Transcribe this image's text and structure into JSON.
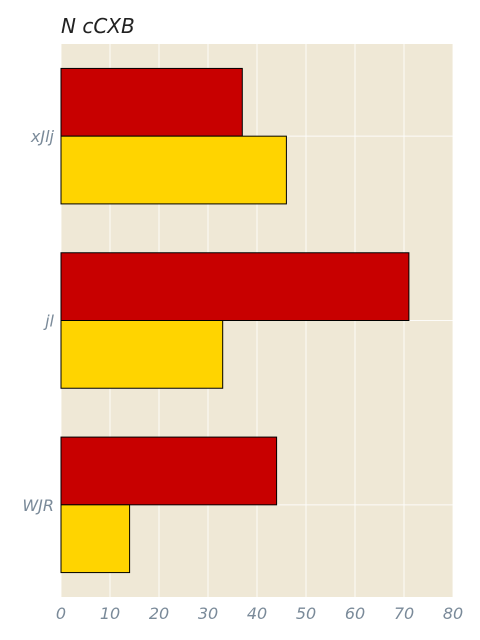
{
  "chart_data": {
    "type": "bar",
    "orientation": "horizontal",
    "title": "N cCXB",
    "xlabel": "",
    "ylabel": "",
    "categories": [
      "WJR",
      "jl",
      "xJlj"
    ],
    "series": [
      {
        "color": "#c80000",
        "values": [
          44,
          71,
          37
        ]
      },
      {
        "color": "#ffd400",
        "values": [
          14,
          33,
          46
        ]
      }
    ],
    "xlim": [
      0,
      80
    ],
    "xticks": [
      0,
      10,
      20,
      30,
      40,
      50,
      60,
      70,
      80
    ],
    "grid": true,
    "legend": "none",
    "background_color": "#efe8d6"
  }
}
